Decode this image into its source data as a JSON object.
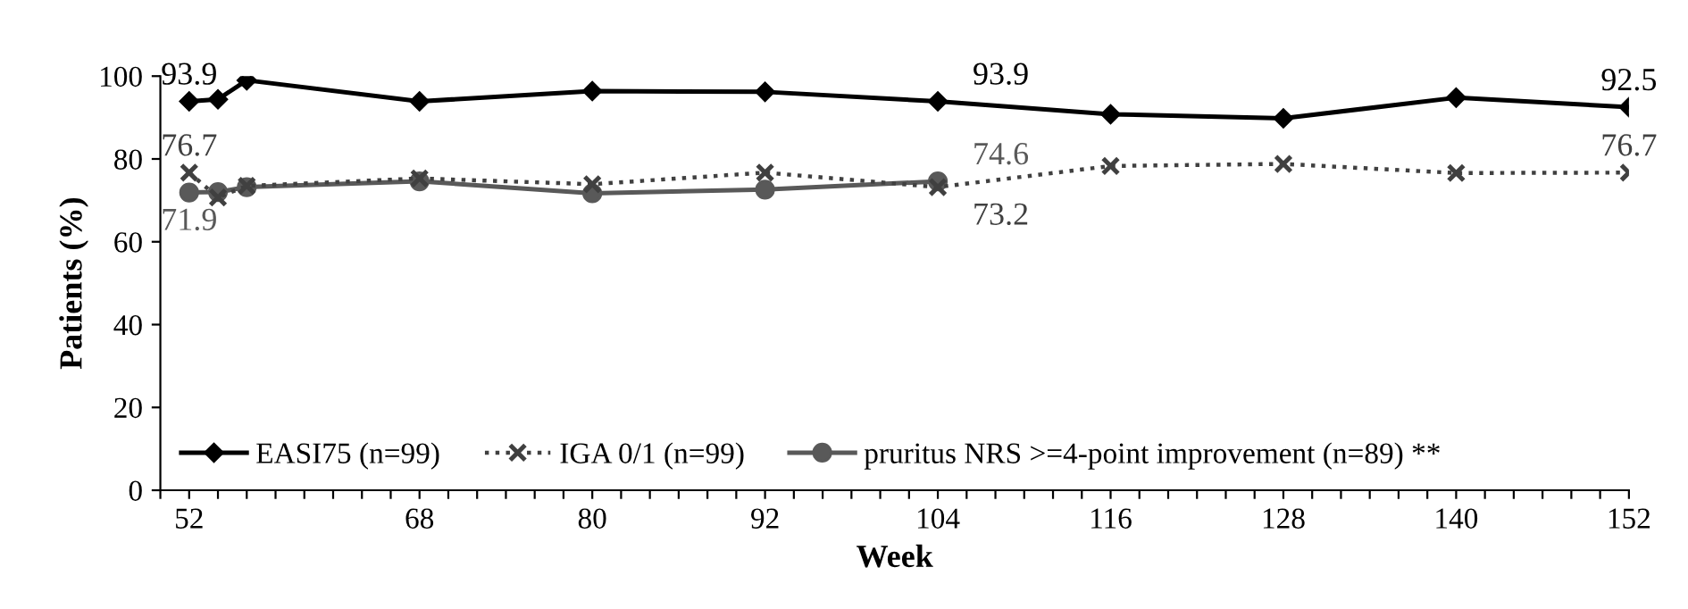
{
  "chart_data": {
    "type": "line",
    "xlabel": "Week",
    "ylabel": "Patients (%)",
    "xlim": [
      50,
      152
    ],
    "ylim": [
      0,
      100
    ],
    "yticks": [
      0,
      20,
      40,
      60,
      80,
      100
    ],
    "xticks": [
      {
        "value": 50,
        "label": null
      },
      52,
      {
        "value": 54,
        "label": null
      },
      {
        "value": 56,
        "label": null
      },
      {
        "value": 58,
        "label": null
      },
      {
        "value": 60,
        "label": null
      },
      {
        "value": 62,
        "label": null
      },
      {
        "value": 64,
        "label": null
      },
      {
        "value": 66,
        "label": null
      },
      68,
      {
        "value": 70,
        "label": null
      },
      {
        "value": 72,
        "label": null
      },
      {
        "value": 74,
        "label": null
      },
      {
        "value": 76,
        "label": null
      },
      {
        "value": 78,
        "label": null
      },
      80,
      {
        "value": 82,
        "label": null
      },
      {
        "value": 84,
        "label": null
      },
      {
        "value": 86,
        "label": null
      },
      {
        "value": 88,
        "label": null
      },
      {
        "value": 90,
        "label": null
      },
      92,
      {
        "value": 94,
        "label": null
      },
      {
        "value": 96,
        "label": null
      },
      {
        "value": 98,
        "label": null
      },
      {
        "value": 100,
        "label": null
      },
      {
        "value": 102,
        "label": null
      },
      104,
      {
        "value": 106,
        "label": null
      },
      {
        "value": 108,
        "label": null
      },
      {
        "value": 110,
        "label": null
      },
      {
        "value": 112,
        "label": null
      },
      {
        "value": 114,
        "label": null
      },
      116,
      {
        "value": 118,
        "label": null
      },
      {
        "value": 120,
        "label": null
      },
      {
        "value": 122,
        "label": null
      },
      {
        "value": 124,
        "label": null
      },
      {
        "value": 126,
        "label": null
      },
      128,
      {
        "value": 130,
        "label": null
      },
      {
        "value": 132,
        "label": null
      },
      {
        "value": 134,
        "label": null
      },
      {
        "value": 136,
        "label": null
      },
      {
        "value": 138,
        "label": null
      },
      140,
      {
        "value": 142,
        "label": null
      },
      {
        "value": 144,
        "label": null
      },
      {
        "value": 146,
        "label": null
      },
      {
        "value": 148,
        "label": null
      },
      {
        "value": 150,
        "label": null
      },
      152
    ],
    "x": [
      52,
      54,
      56,
      68,
      80,
      92,
      104,
      116,
      128,
      140,
      152
    ],
    "grid": false,
    "legend": "bottom left",
    "series": [
      {
        "name": "EASI75 (n=99)",
        "color": "#000000",
        "marker": "diamond",
        "line_style": "solid",
        "values": [
          93.9,
          94.4,
          99.0,
          93.9,
          96.4,
          96.2,
          93.9,
          90.8,
          89.8,
          94.8,
          92.5
        ],
        "value_labels": [
          "93.9",
          null,
          null,
          null,
          null,
          null,
          "93.9",
          null,
          null,
          null,
          "92.5"
        ]
      },
      {
        "name": "IGA 0/1 (n=99)",
        "color": "#404040",
        "marker": "cross",
        "line_style": "dotted",
        "values": [
          76.7,
          70.7,
          73.5,
          75.3,
          73.9,
          76.7,
          73.2,
          78.3,
          78.8,
          76.6,
          76.7
        ],
        "value_labels": [
          "76.7",
          null,
          null,
          null,
          null,
          null,
          "73.2",
          null,
          null,
          null,
          "76.7"
        ]
      },
      {
        "name": "pruritus NRS >=4-point improvement (n=89) **",
        "color": "#595959",
        "marker": "circle",
        "line_style": "solid",
        "values": [
          71.9,
          72.0,
          73.2,
          74.6,
          71.7,
          72.6,
          74.6,
          null,
          null,
          null,
          null
        ],
        "value_labels": [
          "71.9",
          null,
          null,
          null,
          null,
          null,
          "74.6",
          null,
          null,
          null,
          null
        ]
      }
    ]
  }
}
